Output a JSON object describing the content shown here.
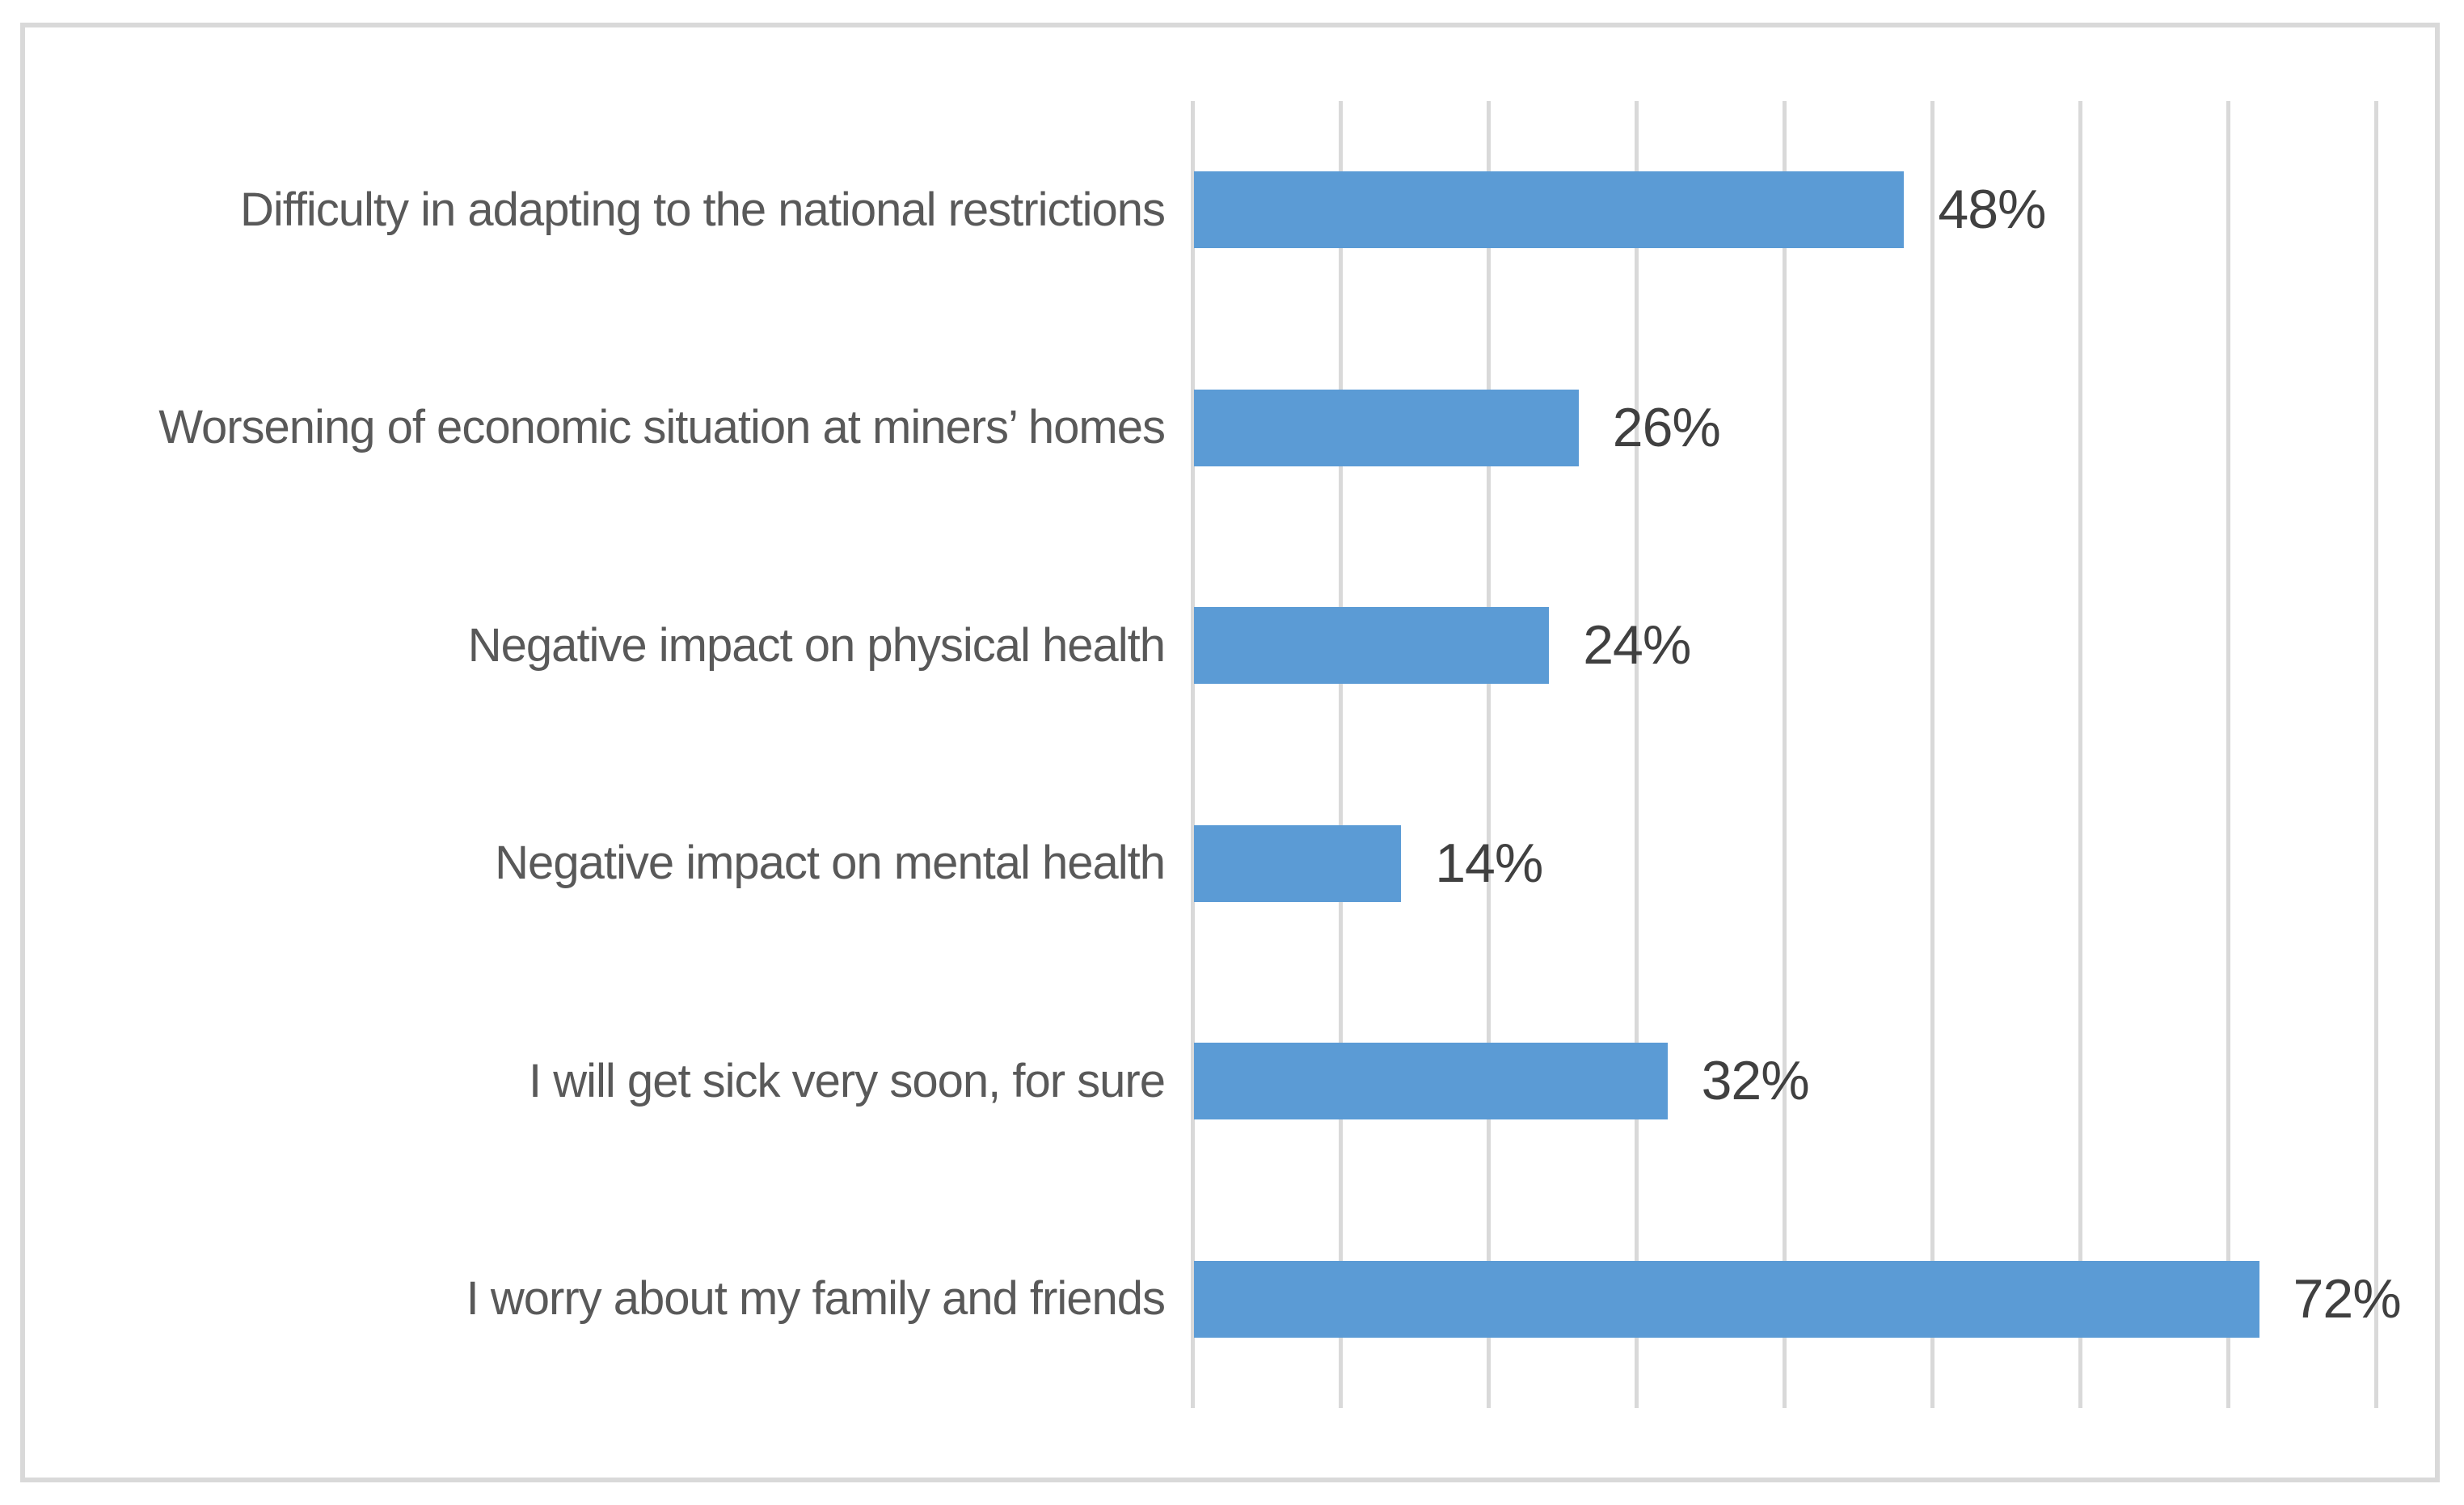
{
  "chart_data": {
    "type": "bar",
    "orientation": "horizontal",
    "title": "",
    "categories": [
      "Difficulty in adapting to the national restrictions",
      "Worsening of economic situation at miners’ homes",
      "Negative impact on physical health",
      "Negative impact on mental health",
      "I will get sick very soon, for sure",
      "I worry about my family and friends"
    ],
    "values": [
      48,
      26,
      24,
      14,
      32,
      72
    ],
    "value_labels": [
      "48%",
      "26%",
      "24%",
      "14%",
      "32%",
      "72%"
    ],
    "xlabel": "",
    "ylabel": "",
    "xlim": [
      0,
      80
    ],
    "gridline_step_pct": 10,
    "x_tick_labels_visible": false,
    "legend": "none",
    "grid": "vertical",
    "colors": {
      "bar": "#5B9BD5",
      "gridline": "#D9D9D9",
      "chart_border": "#D9D9D9",
      "category_label": "#595959",
      "value_label": "#404040",
      "background": "#FFFFFF"
    }
  }
}
